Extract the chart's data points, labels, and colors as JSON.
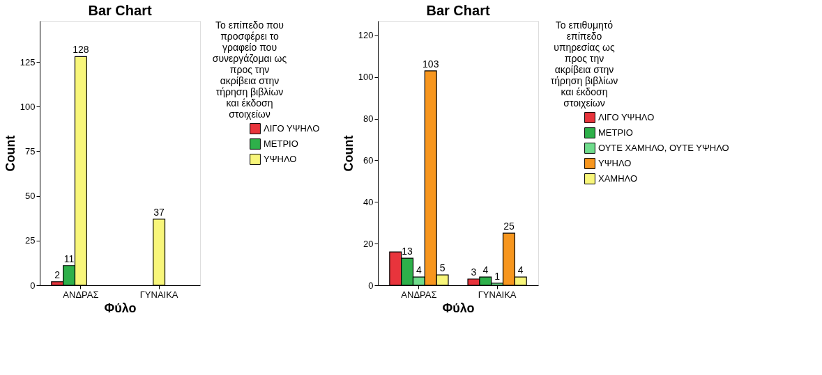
{
  "chart_data": [
    {
      "type": "bar",
      "title": "Bar Chart",
      "xlabel": "Φύλο",
      "ylabel": "Count",
      "legend_title": "Το επίπεδο που προσφέρει το γραφείο που συνεργάζομαι ως προς την ακρίβεια στην τήρηση βιβλίων και έκδοση στοιχείων",
      "legend": "right",
      "grid": false,
      "categories": [
        "ΑΝΔΡΑΣ",
        "ΓΥΝΑΙΚΑ"
      ],
      "ylim": [
        0,
        148
      ],
      "yticks": [
        0,
        25,
        50,
        75,
        100,
        125
      ],
      "series": [
        {
          "name": "ΛΙΓΟ ΥΨΗΛΟ",
          "color": "#e8343c",
          "values": [
            2,
            null
          ],
          "value_labels": [
            "2",
            null
          ]
        },
        {
          "name": "ΜΕΤΡΙΟ",
          "color": "#2eb04a",
          "values": [
            11,
            null
          ],
          "value_labels": [
            "11",
            null
          ]
        },
        {
          "name": "ΥΨΗΛΟ",
          "color": "#f8f67a",
          "values": [
            128,
            37
          ],
          "value_labels": [
            "128",
            "37"
          ]
        }
      ]
    },
    {
      "type": "bar",
      "title": "Bar Chart",
      "xlabel": "Φύλο",
      "ylabel": "Count",
      "legend_title": "Το επιθυμητό επίπεδο υπηρεσίας ως προς την ακρίβεια στην τήρηση βιβλίων και έκδοση στοιχείων",
      "legend": "right",
      "grid": false,
      "categories": [
        "ΑΝΔΡΑΣ",
        "ΓΥΝΑΙΚΑ"
      ],
      "ylim": [
        0,
        127
      ],
      "yticks": [
        0,
        20,
        40,
        60,
        80,
        100,
        120
      ],
      "series": [
        {
          "name": "ΛΙΓΟ ΥΨΗΛΟ",
          "color": "#e8343c",
          "values": [
            16,
            3
          ],
          "value_labels": [
            null,
            "3"
          ]
        },
        {
          "name": "ΜΕΤΡΙΟ",
          "color": "#2eb04a",
          "values": [
            13,
            4
          ],
          "value_labels": [
            "13",
            "4"
          ]
        },
        {
          "name": "ΟΥΤΕ ΧΑΜΗΛΟ, ΟΥΤΕ ΥΨΗΛΟ",
          "color": "#6fdc8c",
          "values": [
            4,
            1
          ],
          "value_labels": [
            "4",
            "1"
          ]
        },
        {
          "name": "ΥΨΗΛΟ",
          "color": "#f7961e",
          "values": [
            103,
            25
          ],
          "value_labels": [
            "103",
            "25"
          ]
        },
        {
          "name": "ΧΑΜΗΛΟ",
          "color": "#f8f67a",
          "values": [
            5,
            4
          ],
          "value_labels": [
            "5",
            "4"
          ]
        }
      ]
    }
  ]
}
